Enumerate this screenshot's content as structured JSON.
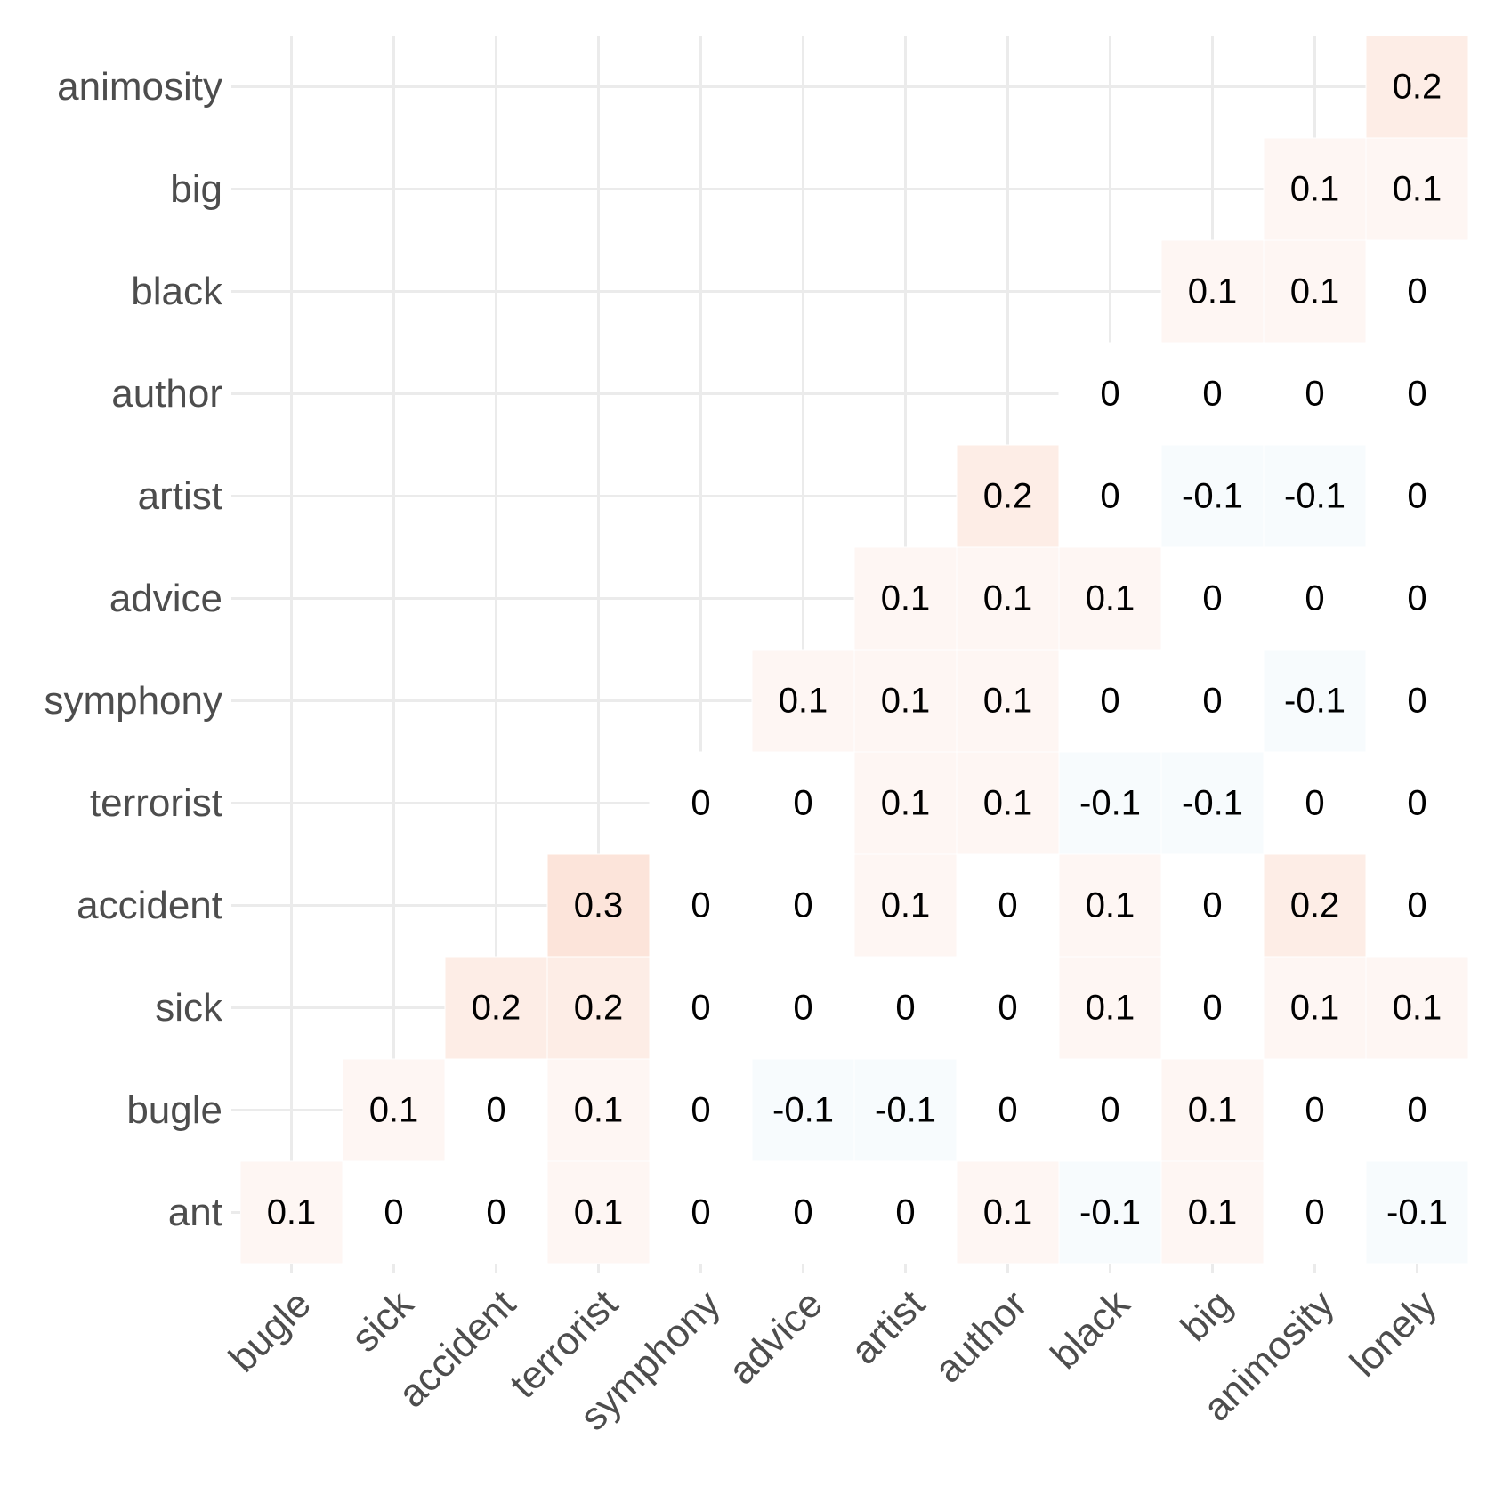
{
  "chart_data": {
    "type": "heatmap",
    "title": "",
    "xlabel": "",
    "ylabel": "",
    "x_categories": [
      "bugle",
      "sick",
      "accident",
      "terrorist",
      "symphony",
      "advice",
      "artist",
      "author",
      "black",
      "big",
      "animosity",
      "lonely"
    ],
    "y_categories": [
      "ant",
      "bugle",
      "sick",
      "accident",
      "terrorist",
      "symphony",
      "advice",
      "artist",
      "author",
      "black",
      "big",
      "animosity"
    ],
    "values": [
      [
        0.1,
        0,
        0,
        0.1,
        0,
        0,
        0,
        0.1,
        -0.1,
        0.1,
        0,
        -0.1
      ],
      [
        null,
        0.1,
        0,
        0.1,
        0,
        -0.1,
        -0.1,
        0,
        0,
        0.1,
        0,
        0
      ],
      [
        null,
        null,
        0.2,
        0.2,
        0,
        0,
        0,
        0,
        0.1,
        0,
        0.1,
        0.1
      ],
      [
        null,
        null,
        null,
        0.3,
        0,
        0,
        0.1,
        0,
        0.1,
        0,
        0.2,
        0
      ],
      [
        null,
        null,
        null,
        null,
        0,
        0,
        0.1,
        0.1,
        -0.1,
        -0.1,
        0,
        0
      ],
      [
        null,
        null,
        null,
        null,
        null,
        0.1,
        0.1,
        0.1,
        0,
        0,
        -0.1,
        0
      ],
      [
        null,
        null,
        null,
        null,
        null,
        null,
        0.1,
        0.1,
        0.1,
        0,
        0,
        0
      ],
      [
        null,
        null,
        null,
        null,
        null,
        null,
        null,
        0.2,
        0,
        -0.1,
        -0.1,
        0
      ],
      [
        null,
        null,
        null,
        null,
        null,
        null,
        null,
        null,
        0,
        0,
        0,
        0
      ],
      [
        null,
        null,
        null,
        null,
        null,
        null,
        null,
        null,
        null,
        0.1,
        0.1,
        0
      ],
      [
        null,
        null,
        null,
        null,
        null,
        null,
        null,
        null,
        null,
        null,
        0.1,
        0.1
      ],
      [
        null,
        null,
        null,
        null,
        null,
        null,
        null,
        null,
        null,
        null,
        null,
        0.2
      ]
    ],
    "grid": true,
    "legend": "none",
    "colors": {
      "positive": "#f4a582",
      "negative": "#92c5de",
      "neutral": "#ffffff",
      "cell_border": "#ffffff",
      "grid": "#ebebeb",
      "axis_text": "#4d4d4d",
      "cell_text": "#000000"
    }
  }
}
